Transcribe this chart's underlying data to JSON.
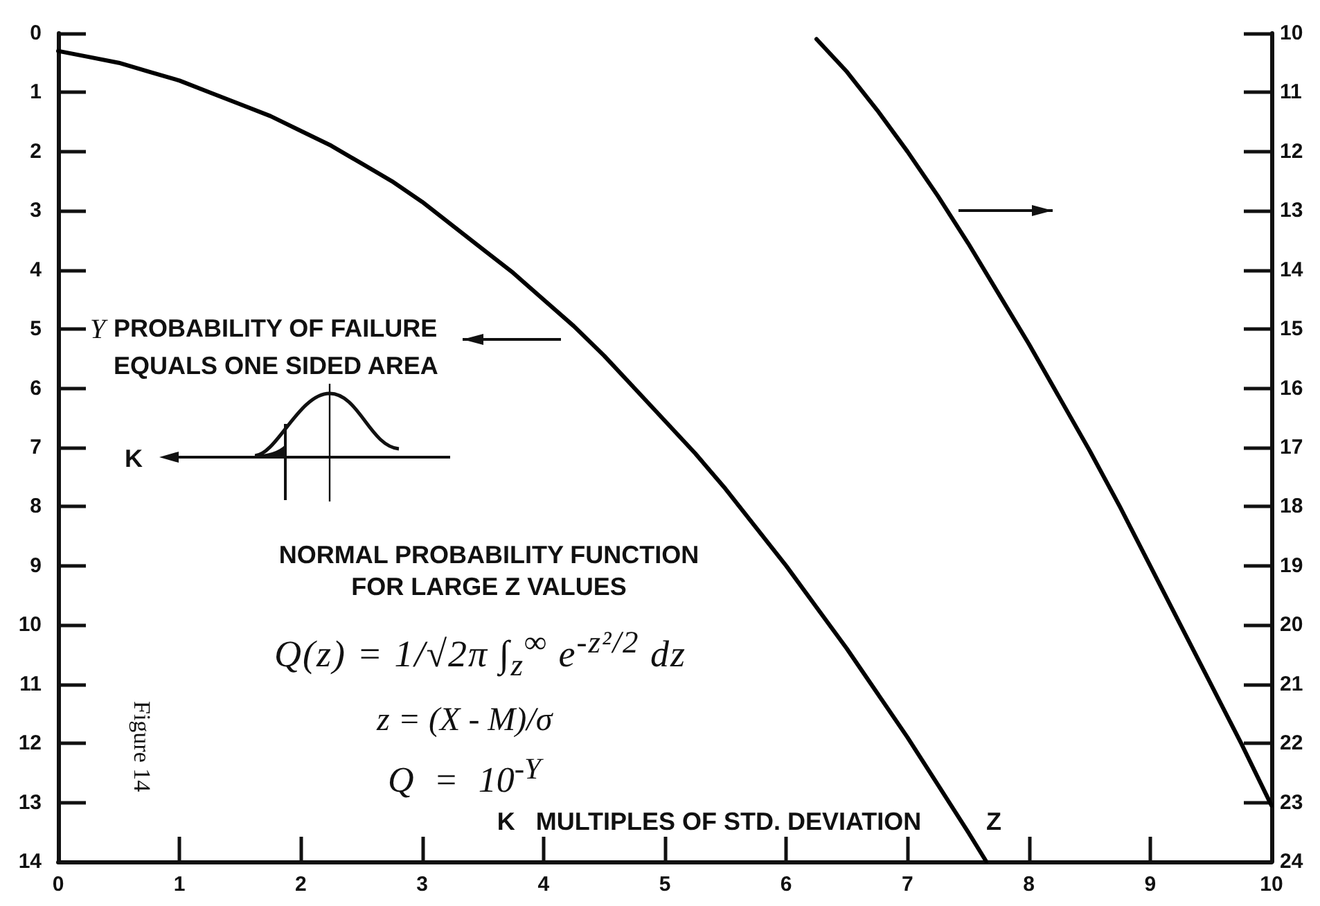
{
  "chart_data": {
    "type": "line",
    "title": "NORMAL PROBABILITY FUNCTION\nFOR LARGE Z VALUES",
    "xlabel": "K   MULTIPLES OF STD. DEVIATION",
    "ylabel": "Y",
    "annotations": [
      "PROBABILITY OF FAILURE\nEQUALS ONE SIDED AREA",
      "K",
      "Q(z) = 1/√2π ∫$_{z}$$^{∞}$ e$^{-z²/2}$ dz",
      "z = (X - M)/σ",
      "Q = 10$^{-Y}$",
      "Z",
      "Figure 14"
    ],
    "series": [
      {
        "color": "#000000",
        "x": [
          0,
          0.25,
          0.5,
          0.75,
          1,
          1.25,
          1.5,
          1.75,
          2,
          2.25,
          2.5,
          2.75,
          3,
          3.25,
          3.5,
          3.75,
          4,
          4.25,
          4.5,
          4.75,
          5,
          5.25,
          5.5,
          5.75,
          6,
          6.25,
          6.5,
          6.75,
          7,
          7.25,
          7.5,
          7.65
        ],
        "values": [
          0.3,
          0.4,
          0.5,
          0.65,
          0.8,
          1.0,
          1.2,
          1.4,
          1.65,
          1.9,
          2.2,
          2.5,
          2.85,
          3.25,
          3.65,
          4.05,
          4.5,
          4.95,
          5.45,
          6.0,
          6.55,
          7.1,
          7.7,
          8.35,
          9.0,
          9.7,
          10.4,
          11.15,
          11.9,
          12.7,
          13.5,
          14.0
        ]
      },
      {
        "color": "#000000",
        "axis": "y2",
        "x": [
          6.25,
          6.5,
          6.75,
          7,
          7.25,
          7.5,
          7.75,
          8,
          8.25,
          8.5,
          8.75,
          9,
          9.25,
          9.5,
          9.75,
          10
        ],
        "values": [
          10.1,
          10.65,
          11.3,
          12.0,
          12.75,
          13.55,
          14.4,
          15.25,
          16.15,
          17.05,
          18.0,
          19.0,
          20.0,
          21.0,
          22.0,
          23.05
        ]
      }
    ],
    "xlim": [
      0,
      10
    ],
    "xticks": [
      0,
      1,
      2,
      3,
      4,
      5,
      6,
      7,
      8,
      9,
      10
    ],
    "ylim": [
      14,
      0
    ],
    "yticks": [
      0,
      1,
      2,
      3,
      4,
      5,
      6,
      7,
      8,
      9,
      10,
      11,
      12,
      13,
      14
    ],
    "y2lim": [
      24,
      10
    ],
    "y2ticks": [
      10,
      11,
      12,
      13,
      14,
      15,
      16,
      17,
      18,
      19,
      20,
      21,
      22,
      23,
      24
    ],
    "marker": "none",
    "line_style": "solid"
  }
}
